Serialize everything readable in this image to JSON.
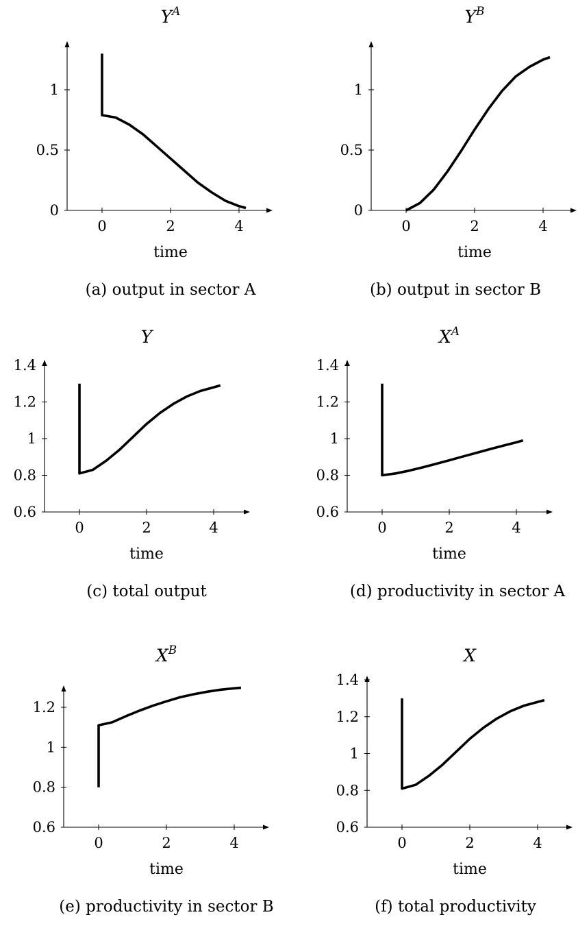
{
  "chart_data": [
    {
      "type": "line",
      "title": "Y",
      "title_superscript": "A",
      "xlabel": "time",
      "caption": "(a) output in sector A",
      "xticks": [
        0,
        2,
        4
      ],
      "yticks": [
        0,
        0.5,
        1
      ],
      "ytick_labels": [
        "0",
        "0.5",
        "1"
      ],
      "xlim": [
        -1,
        5
      ],
      "ylim": [
        0,
        1.35
      ],
      "series": [
        {
          "x": [
            0,
            0,
            0.4,
            0.8,
            1.2,
            1.6,
            2.0,
            2.4,
            2.8,
            3.2,
            3.6,
            4.0,
            4.2
          ],
          "y": [
            1.3,
            0.79,
            0.77,
            0.71,
            0.63,
            0.53,
            0.43,
            0.33,
            0.23,
            0.15,
            0.08,
            0.035,
            0.02
          ]
        }
      ]
    },
    {
      "type": "line",
      "title": "Y",
      "title_superscript": "B",
      "xlabel": "time",
      "caption": "(b) output in sector B",
      "xticks": [
        0,
        2,
        4
      ],
      "yticks": [
        0,
        0.5,
        1
      ],
      "ytick_labels": [
        "0",
        "0.5",
        "1"
      ],
      "xlim": [
        -1,
        5
      ],
      "ylim": [
        0,
        1.35
      ],
      "series": [
        {
          "x": [
            0,
            0.4,
            0.8,
            1.2,
            1.6,
            2.0,
            2.4,
            2.8,
            3.2,
            3.6,
            4.0,
            4.2
          ],
          "y": [
            0,
            0.06,
            0.17,
            0.32,
            0.49,
            0.67,
            0.84,
            0.99,
            1.11,
            1.19,
            1.25,
            1.27
          ]
        }
      ]
    },
    {
      "type": "line",
      "title": "Y",
      "title_superscript": "",
      "xlabel": "time",
      "caption": "(c) total output",
      "xticks": [
        0,
        2,
        4
      ],
      "yticks": [
        0.6,
        0.8,
        1,
        1.2,
        1.4
      ],
      "ytick_labels": [
        "0.6",
        "0.8",
        "1",
        "1.2",
        "1.4"
      ],
      "xlim": [
        -1,
        5
      ],
      "ylim": [
        0.6,
        1.4
      ],
      "series": [
        {
          "x": [
            0,
            0,
            0.4,
            0.8,
            1.2,
            1.6,
            2.0,
            2.4,
            2.8,
            3.2,
            3.6,
            4.0,
            4.2
          ],
          "y": [
            1.3,
            0.81,
            0.83,
            0.88,
            0.94,
            1.01,
            1.08,
            1.14,
            1.19,
            1.23,
            1.26,
            1.28,
            1.29
          ]
        }
      ]
    },
    {
      "type": "line",
      "title": "X",
      "title_superscript": "A",
      "xlabel": "time",
      "caption": "(d) productivity in sector A",
      "xticks": [
        0,
        2,
        4
      ],
      "yticks": [
        0.6,
        0.8,
        1,
        1.2,
        1.4
      ],
      "ytick_labels": [
        "0.6",
        "0.8",
        "1",
        "1.2",
        "1.4"
      ],
      "xlim": [
        -1,
        5
      ],
      "ylim": [
        0.6,
        1.4
      ],
      "series": [
        {
          "x": [
            0,
            0,
            0.4,
            0.8,
            1.2,
            1.6,
            2.0,
            2.4,
            2.8,
            3.2,
            3.6,
            4.0,
            4.2
          ],
          "y": [
            1.3,
            0.8,
            0.81,
            0.825,
            0.843,
            0.862,
            0.882,
            0.902,
            0.922,
            0.942,
            0.961,
            0.98,
            0.99
          ]
        }
      ]
    },
    {
      "type": "line",
      "title": "X",
      "title_superscript": "B",
      "xlabel": "time",
      "caption": "(e) productivity in sector B",
      "xticks": [
        0,
        2,
        4
      ],
      "yticks": [
        0.6,
        0.8,
        1,
        1.2
      ],
      "ytick_labels": [
        "0.6",
        "0.8",
        "1",
        "1.2"
      ],
      "xlim": [
        -1,
        5
      ],
      "ylim": [
        0.6,
        1.32
      ],
      "series": [
        {
          "x": [
            0,
            0,
            0.4,
            0.8,
            1.2,
            1.6,
            2.0,
            2.4,
            2.8,
            3.2,
            3.6,
            4.0,
            4.2
          ],
          "y": [
            0.8,
            1.11,
            1.125,
            1.155,
            1.183,
            1.208,
            1.23,
            1.25,
            1.265,
            1.278,
            1.288,
            1.295,
            1.298
          ]
        }
      ]
    },
    {
      "type": "line",
      "title": "X",
      "title_superscript": "",
      "xlabel": "time",
      "caption": "(f) total productivity",
      "xticks": [
        0,
        2,
        4
      ],
      "yticks": [
        0.6,
        0.8,
        1,
        1.2,
        1.4
      ],
      "ytick_labels": [
        "0.6",
        "0.8",
        "1",
        "1.2",
        "1.4"
      ],
      "xlim": [
        -1,
        5
      ],
      "ylim": [
        0.6,
        1.4
      ],
      "series": [
        {
          "x": [
            0,
            0,
            0.4,
            0.8,
            1.2,
            1.6,
            2.0,
            2.4,
            2.8,
            3.2,
            3.6,
            4.0,
            4.2
          ],
          "y": [
            1.3,
            0.81,
            0.83,
            0.88,
            0.94,
            1.01,
            1.08,
            1.14,
            1.19,
            1.23,
            1.26,
            1.28,
            1.29
          ]
        }
      ]
    }
  ]
}
